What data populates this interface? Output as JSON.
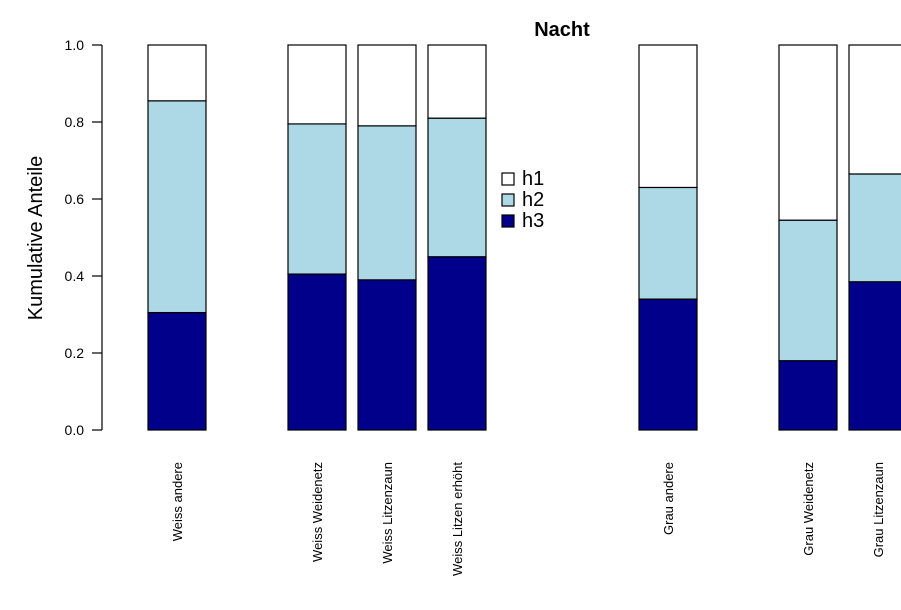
{
  "chart_data": {
    "type": "bar",
    "stacked": true,
    "title": "Nacht",
    "xlabel": "",
    "ylabel": "Kumulative Anteile",
    "ylim": [
      0,
      1
    ],
    "yticks": [
      "0.0",
      "0.2",
      "0.4",
      "0.6",
      "0.8",
      "1.0"
    ],
    "categories": [
      "Weiss andere",
      "Weiss Weidenetz",
      "Weiss Litzenzaun",
      "Weiss Litzen erhöht",
      "Grau andere",
      "Grau  Weidenetz",
      "Grau Litzenzaun"
    ],
    "series": [
      {
        "name": "h3",
        "color": "#00008b",
        "values": [
          0.305,
          0.405,
          0.39,
          0.45,
          0.34,
          0.18,
          0.385
        ]
      },
      {
        "name": "h2",
        "color": "#add8e6",
        "values": [
          0.55,
          0.39,
          0.4,
          0.36,
          0.29,
          0.365,
          0.28
        ]
      },
      {
        "name": "h1",
        "color": "#ffffff",
        "values": [
          0.145,
          0.205,
          0.21,
          0.19,
          0.37,
          0.455,
          0.335
        ]
      }
    ],
    "legend_order": [
      "h1",
      "h2",
      "h3"
    ],
    "legend_position": "middle"
  }
}
